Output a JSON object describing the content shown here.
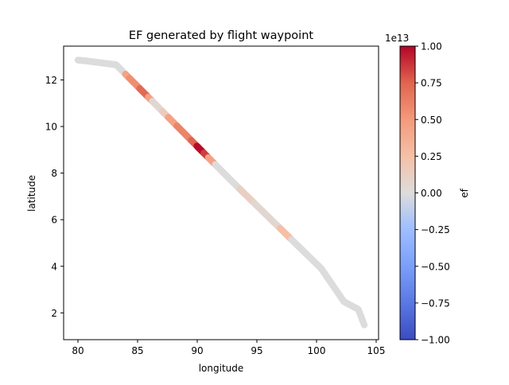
{
  "chart_data": {
    "type": "scatter",
    "title": "EF generated by flight waypoint",
    "xlabel": "longitude",
    "ylabel": "latitude",
    "xlim": [
      78.8,
      105.2
    ],
    "ylim": [
      0.85,
      13.45
    ],
    "xticks": [
      80,
      85,
      90,
      95,
      100,
      105
    ],
    "yticks": [
      2,
      4,
      6,
      8,
      10,
      12
    ],
    "grid": false,
    "colormap": "coolwarm",
    "colorbar": {
      "label": "ef",
      "offset_text": "1e13",
      "range": [
        -1.0,
        1.0
      ],
      "ticks": [
        -1.0,
        -0.75,
        -0.5,
        -0.25,
        0.0,
        0.25,
        0.5,
        0.75,
        1.0
      ],
      "tick_labels": [
        "−1.00",
        "−0.75",
        "−0.50",
        "−0.25",
        "0.00",
        "0.25",
        "0.50",
        "0.75",
        "1.00"
      ]
    },
    "path": [
      {
        "x": 80.0,
        "y": 12.85
      },
      {
        "x": 80.6,
        "y": 12.82
      },
      {
        "x": 83.2,
        "y": 12.65
      },
      {
        "x": 93.0,
        "y": 7.6
      },
      {
        "x": 100.4,
        "y": 3.9
      },
      {
        "x": 102.3,
        "y": 2.48
      },
      {
        "x": 103.5,
        "y": 2.15
      },
      {
        "x": 104.0,
        "y": 1.48
      }
    ],
    "ef_segments": [
      {
        "start": 0.0,
        "end": 0.15,
        "value": 0.0
      },
      {
        "start": 0.15,
        "end": 0.165,
        "value": 0.45
      },
      {
        "start": 0.165,
        "end": 0.2,
        "value": 0.55
      },
      {
        "start": 0.2,
        "end": 0.23,
        "value": 0.72
      },
      {
        "start": 0.23,
        "end": 0.245,
        "value": 0.45
      },
      {
        "start": 0.245,
        "end": 0.28,
        "value": 0.05
      },
      {
        "start": 0.28,
        "end": 0.3,
        "value": 0.15
      },
      {
        "start": 0.3,
        "end": 0.33,
        "value": 0.45
      },
      {
        "start": 0.33,
        "end": 0.38,
        "value": 0.6
      },
      {
        "start": 0.38,
        "end": 0.4,
        "value": 0.75
      },
      {
        "start": 0.4,
        "end": 0.425,
        "value": 0.98
      },
      {
        "start": 0.425,
        "end": 0.44,
        "value": 0.85
      },
      {
        "start": 0.44,
        "end": 0.465,
        "value": 0.45
      },
      {
        "start": 0.465,
        "end": 0.55,
        "value": 0.0
      },
      {
        "start": 0.55,
        "end": 0.6,
        "value": 0.12
      },
      {
        "start": 0.6,
        "end": 0.69,
        "value": 0.05
      },
      {
        "start": 0.69,
        "end": 0.73,
        "value": 0.25
      },
      {
        "start": 0.73,
        "end": 1.0,
        "value": 0.0
      }
    ]
  }
}
